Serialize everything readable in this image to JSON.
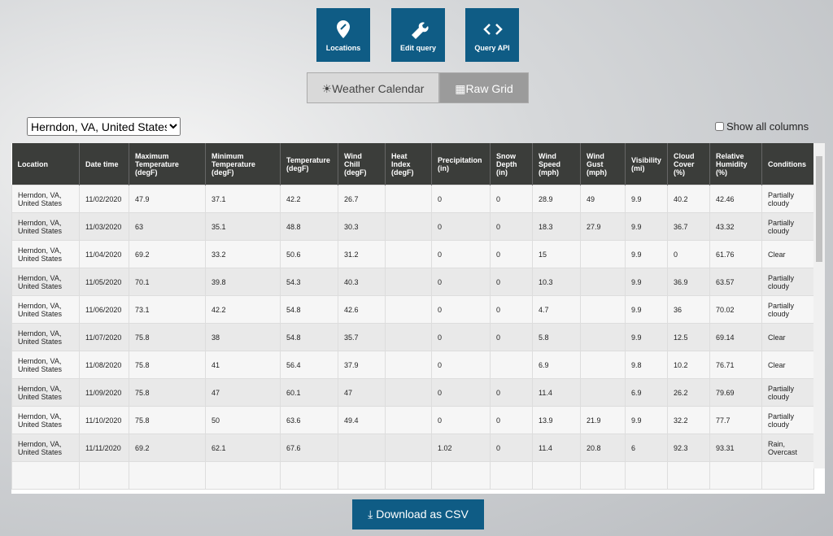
{
  "toolbar": {
    "buttons": [
      "Locations",
      "Edit query",
      "Query API"
    ]
  },
  "tabs": [
    "Weather Calendar",
    "Raw Grid"
  ],
  "location_select": "Herndon, VA, United States",
  "show_all_columns": "Show all columns",
  "table": {
    "headers": [
      "Location",
      "Date time",
      "Maximum Temperature (degF)",
      "Minimum Temperature (degF)",
      "Temperature (degF)",
      "Wind Chill (degF)",
      "Heat Index (degF)",
      "Precipitation (in)",
      "Snow Depth (in)",
      "Wind Speed (mph)",
      "Wind Gust (mph)",
      "Visibility (mi)",
      "Cloud Cover (%)",
      "Relative Humidity (%)",
      "Conditions"
    ],
    "rows": [
      [
        "Herndon, VA, United States",
        "11/02/2020",
        "47.9",
        "37.1",
        "42.2",
        "26.7",
        null,
        "0",
        "0",
        "28.9",
        "49",
        "9.9",
        "40.2",
        "42.46",
        "Partially cloudy"
      ],
      [
        "Herndon, VA, United States",
        "11/03/2020",
        "63",
        "35.1",
        "48.8",
        "30.3",
        null,
        "0",
        "0",
        "18.3",
        "27.9",
        "9.9",
        "36.7",
        "43.32",
        "Partially cloudy"
      ],
      [
        "Herndon, VA, United States",
        "11/04/2020",
        "69.2",
        "33.2",
        "50.6",
        "31.2",
        null,
        "0",
        "0",
        "15",
        null,
        "9.9",
        "0",
        "61.76",
        "Clear"
      ],
      [
        "Herndon, VA, United States",
        "11/05/2020",
        "70.1",
        "39.8",
        "54.3",
        "40.3",
        null,
        "0",
        "0",
        "10.3",
        null,
        "9.9",
        "36.9",
        "63.57",
        "Partially cloudy"
      ],
      [
        "Herndon, VA, United States",
        "11/06/2020",
        "73.1",
        "42.2",
        "54.8",
        "42.6",
        null,
        "0",
        "0",
        "4.7",
        null,
        "9.9",
        "36",
        "70.02",
        "Partially cloudy"
      ],
      [
        "Herndon, VA, United States",
        "11/07/2020",
        "75.8",
        "38",
        "54.8",
        "35.7",
        null,
        "0",
        "0",
        "5.8",
        null,
        "9.9",
        "12.5",
        "69.14",
        "Clear"
      ],
      [
        "Herndon, VA, United States",
        "11/08/2020",
        "75.8",
        "41",
        "56.4",
        "37.9",
        null,
        "0",
        null,
        "6.9",
        null,
        "9.8",
        "10.2",
        "76.71",
        "Clear"
      ],
      [
        "Herndon, VA, United States",
        "11/09/2020",
        "75.8",
        "47",
        "60.1",
        "47",
        null,
        "0",
        "0",
        "11.4",
        null,
        "6.9",
        "26.2",
        "79.69",
        "Partially cloudy"
      ],
      [
        "Herndon, VA, United States",
        "11/10/2020",
        "75.8",
        "50",
        "63.6",
        "49.4",
        null,
        "0",
        "0",
        "13.9",
        "21.9",
        "9.9",
        "32.2",
        "77.7",
        "Partially cloudy"
      ],
      [
        "Herndon, VA, United States",
        "11/11/2020",
        "69.2",
        "62.1",
        "67.6",
        null,
        null,
        "1.02",
        "0",
        "11.4",
        "20.8",
        "6",
        "92.3",
        "93.31",
        "Rain, Overcast"
      ]
    ]
  },
  "download_button": "Download as CSV"
}
